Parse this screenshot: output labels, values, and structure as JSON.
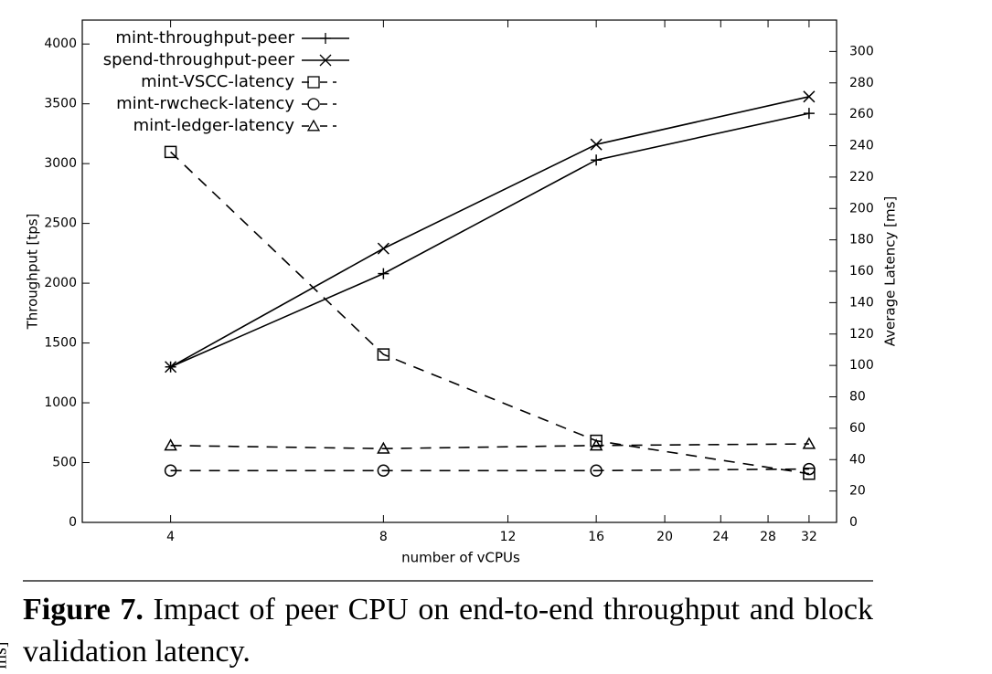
{
  "chart_data": {
    "type": "line",
    "x_label": "number of vCPUs",
    "y_label": "Throughput [tps]",
    "y2_label": "Average Latency [ms]",
    "x": [
      4,
      8,
      16,
      32
    ],
    "xlim": [
      3,
      35
    ],
    "xticks": [
      4,
      8,
      12,
      16,
      20,
      24,
      28,
      32
    ],
    "xscale": "log",
    "ylim": [
      0,
      4200
    ],
    "yticks": [
      0,
      500,
      1000,
      1500,
      2000,
      2500,
      3000,
      3500,
      4000
    ],
    "y2lim": [
      0,
      320
    ],
    "y2ticks": [
      0,
      20,
      40,
      60,
      80,
      100,
      120,
      140,
      160,
      180,
      200,
      220,
      240,
      260,
      280,
      300
    ],
    "grid": false,
    "legend": "top-left",
    "series": [
      {
        "name": "mint-throughput-peer",
        "color": "#000000",
        "marker": "plus",
        "dashed": false,
        "values": [
          1300,
          2080,
          3030,
          3420
        ]
      },
      {
        "name": "spend-throughput-peer",
        "color": "#000000",
        "marker": "cross",
        "dashed": false,
        "values": [
          1300,
          2290,
          3160,
          3560
        ]
      },
      {
        "name": "mint-VSCC-latency",
        "color": "#000000",
        "marker": "square",
        "dashed": true,
        "axis": "y2",
        "values": [
          236,
          107,
          52,
          31
        ]
      },
      {
        "name": "mint-rwcheck-latency",
        "color": "#000000",
        "marker": "circle",
        "dashed": true,
        "axis": "y2",
        "values": [
          33,
          33,
          33,
          34
        ]
      },
      {
        "name": "mint-ledger-latency",
        "color": "#000000",
        "marker": "triangle",
        "dashed": true,
        "axis": "y2",
        "values": [
          49,
          47,
          49,
          50
        ]
      }
    ]
  },
  "caption": {
    "label": "Figure 7.",
    "text": "Impact of peer CPU on end-to-end throughput and block validation latency."
  },
  "side_fragment": "ms]"
}
